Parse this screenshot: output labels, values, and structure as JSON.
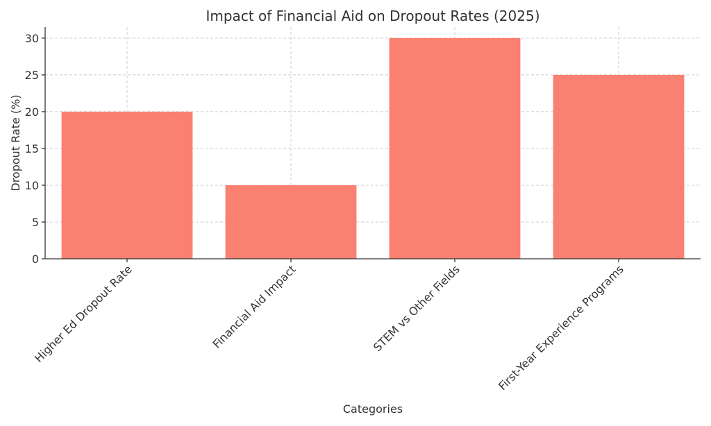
{
  "chart_data": {
    "type": "bar",
    "title": "Impact of Financial Aid on Dropout Rates (2025)",
    "xlabel": "Categories",
    "ylabel": "Dropout Rate (%)",
    "categories": [
      "Higher Ed Dropout Rate",
      "Financial Aid Impact",
      "STEM vs Other Fields",
      "First-Year Experience Programs"
    ],
    "values": [
      20,
      10,
      30,
      25
    ],
    "ylim": [
      0,
      31.5
    ],
    "yticks": [
      0,
      5,
      10,
      15,
      20,
      25,
      30
    ],
    "grid": true,
    "bar_color": "#fa8072",
    "xtick_rotation_deg": 45
  }
}
